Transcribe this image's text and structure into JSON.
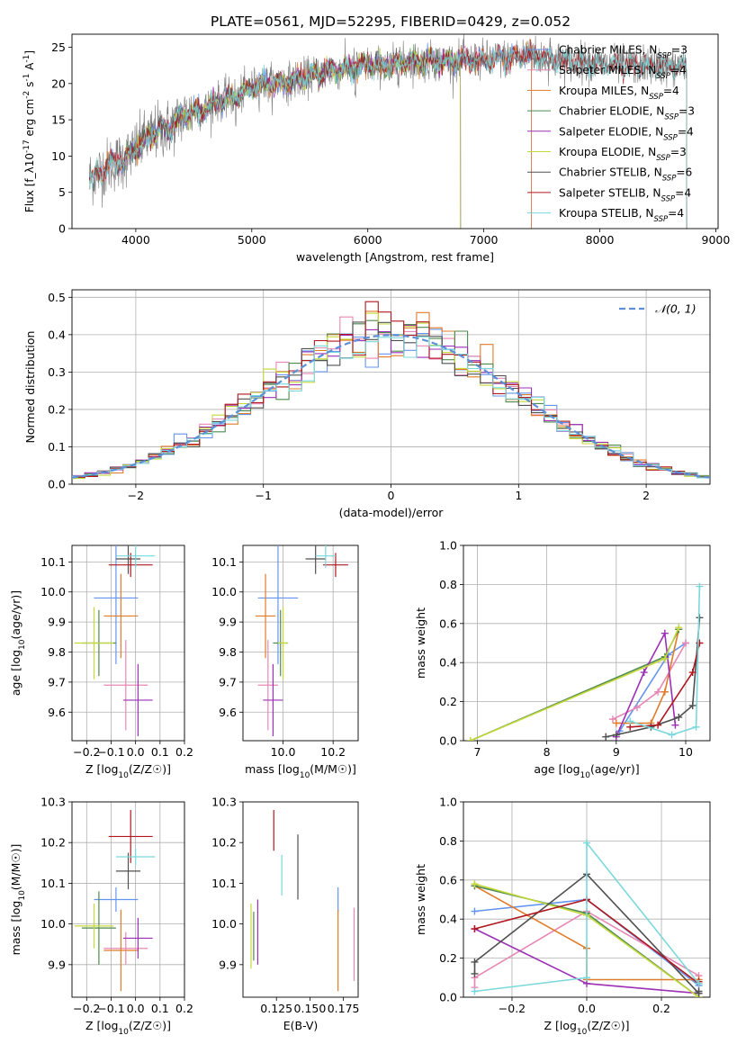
{
  "figure": {
    "title": "PLATE=0561, MJD=52295, FIBERID=0429, z=0.052"
  },
  "model_names": [
    "Chabrier MILES, N_{SSP}=3",
    "Salpeter MILES, N_{SSP}=4",
    "Kroupa MILES, N_{SSP}=4",
    "Chabrier ELODIE, N_{SSP}=3",
    "Salpeter ELODIE, N_{SSP}=4",
    "Kroupa ELODIE, N_{SSP}=3",
    "Chabrier STELIB, N_{SSP}=6",
    "Salpeter STELIB, N_{SSP}=4",
    "Kroupa STELIB, N_{SSP}=4"
  ],
  "model_colors": [
    "#6495ed",
    "#e887b5",
    "#e07b2a",
    "#4f8a4f",
    "#9b30b5",
    "#c5d83a",
    "#505050",
    "#b0171f",
    "#7ad8db"
  ],
  "chart_data": [
    {
      "id": "spectrum",
      "type": "line",
      "title": "PLATE=0561, MJD=52295, FIBERID=0429, z=0.052",
      "xlabel": "wavelength [Angstrom, rest frame]",
      "ylabel": "Flux [f_λ10^{-17} erg cm^{-2} s^{-1} A^{-1}]",
      "xlim": [
        3450,
        9020
      ],
      "ylim": [
        0,
        26.8
      ],
      "xticks": [
        4000,
        5000,
        6000,
        7000,
        8000,
        9000
      ],
      "yticks": [
        0,
        5,
        10,
        15,
        20,
        25
      ],
      "grid": false,
      "legend": "right",
      "data_x_range": [
        3600,
        8750
      ],
      "observed_envelope": {
        "x": [
          3600,
          3700,
          3800,
          3900,
          4000,
          4100,
          4200,
          4300,
          4400,
          4500,
          4600,
          4700,
          4800,
          4900,
          5000,
          5100,
          5200,
          5400,
          5600,
          5800,
          6000,
          6200,
          6400,
          6600,
          6800,
          7000,
          7200,
          7400,
          7600,
          7800,
          8000,
          8200,
          8400,
          8600,
          8750
        ],
        "y": [
          7,
          8,
          9,
          9.5,
          11,
          12.5,
          13.5,
          14,
          15.5,
          16,
          16.5,
          17.5,
          18,
          18.5,
          19.5,
          20,
          20,
          20.5,
          21.5,
          22,
          22.5,
          22.5,
          23,
          23,
          23.2,
          23.3,
          23.5,
          24,
          23.2,
          23,
          22.7,
          22.5,
          22.5,
          22.3,
          22.2
        ]
      },
      "series": [
        {
          "name": "Chabrier MILES, N_{SSP}=3",
          "x_range": [
            3600,
            7410
          ]
        },
        {
          "name": "Salpeter MILES, N_{SSP}=4",
          "x_range": [
            3600,
            7410
          ]
        },
        {
          "name": "Kroupa MILES, N_{SSP}=4",
          "x_range": [
            3600,
            7410
          ]
        },
        {
          "name": "Chabrier ELODIE, N_{SSP}=3",
          "x_range": [
            3900,
            6800
          ]
        },
        {
          "name": "Salpeter ELODIE, N_{SSP}=4",
          "x_range": [
            3900,
            6800
          ]
        },
        {
          "name": "Kroupa ELODIE, N_{SSP}=3",
          "x_range": [
            3900,
            6800
          ]
        },
        {
          "name": "Chabrier STELIB, N_{SSP}=6",
          "x_range": [
            3600,
            8750
          ]
        },
        {
          "name": "Salpeter STELIB, N_{SSP}=4",
          "x_range": [
            3600,
            8750
          ]
        },
        {
          "name": "Kroupa STELIB, N_{SSP}=4",
          "x_range": [
            3600,
            8750
          ]
        }
      ]
    },
    {
      "id": "residuals",
      "type": "area",
      "xlabel": "(data-model)/error",
      "ylabel": "Normed distribution",
      "xlim": [
        -2.5,
        2.5
      ],
      "ylim": [
        0,
        0.52
      ],
      "xticks": [
        -2,
        -1,
        0,
        1,
        2
      ],
      "yticks": [
        0.0,
        0.1,
        0.2,
        0.3,
        0.4,
        0.5
      ],
      "grid": true,
      "legend": "top-right",
      "gaussian": {
        "name": "𝒩(0, 1)",
        "mu": 0,
        "sigma": 1
      },
      "bin_width": 0.1,
      "histogram_bins": [
        -2.5,
        2.5
      ]
    },
    {
      "id": "age_vs_z",
      "type": "scatter",
      "xlabel": "Z [log10(Z/Z☉)]",
      "ylabel": "age  [log10(age/yr)]",
      "xlim": [
        -0.26,
        0.2
      ],
      "ylim": [
        9.505,
        10.155
      ],
      "xticks": [
        -0.2,
        -0.1,
        0.0,
        0.1,
        0.2
      ],
      "yticks": [
        9.6,
        9.7,
        9.8,
        9.9,
        10.0,
        10.1
      ],
      "grid": true,
      "points": [
        {
          "x": -0.08,
          "y": 9.98,
          "xerr": 0.09,
          "yerr": 0.22
        },
        {
          "x": -0.04,
          "y": 9.69,
          "xerr": 0.09,
          "yerr": 0.15
        },
        {
          "x": -0.06,
          "y": 9.92,
          "xerr": 0.07,
          "yerr": 0.14
        },
        {
          "x": -0.15,
          "y": 9.83,
          "xerr": 0.07,
          "yerr": 0.11
        },
        {
          "x": 0.01,
          "y": 9.64,
          "xerr": 0.06,
          "yerr": 0.12
        },
        {
          "x": -0.17,
          "y": 9.83,
          "xerr": 0.08,
          "yerr": 0.12
        },
        {
          "x": -0.03,
          "y": 10.11,
          "xerr": 0.05,
          "yerr": 0.05
        },
        {
          "x": -0.02,
          "y": 10.09,
          "xerr": 0.09,
          "yerr": 0.04
        },
        {
          "x": 0.0,
          "y": 10.12,
          "xerr": 0.08,
          "yerr": 0.04
        }
      ]
    },
    {
      "id": "age_vs_mass",
      "type": "scatter",
      "xlabel": "mass [log10(M/M☉)]",
      "ylabel": "",
      "xlim": [
        9.84,
        10.3
      ],
      "ylim": [
        9.505,
        10.155
      ],
      "xticks": [
        10.0,
        10.2
      ],
      "yticks": [
        9.6,
        9.7,
        9.8,
        9.9,
        10.0,
        10.1
      ],
      "grid": true,
      "points": [
        {
          "x": 9.98,
          "y": 9.98,
          "xerr": 0.08,
          "yerr": 0.22
        },
        {
          "x": 9.94,
          "y": 9.69,
          "xerr": 0.04,
          "yerr": 0.15
        },
        {
          "x": 9.93,
          "y": 9.92,
          "xerr": 0.04,
          "yerr": 0.14
        },
        {
          "x": 9.99,
          "y": 9.83,
          "xerr": 0.03,
          "yerr": 0.11
        },
        {
          "x": 9.96,
          "y": 9.64,
          "xerr": 0.04,
          "yerr": 0.12
        },
        {
          "x": 10.0,
          "y": 9.83,
          "xerr": 0.02,
          "yerr": 0.12
        },
        {
          "x": 10.13,
          "y": 10.11,
          "xerr": 0.04,
          "yerr": 0.05
        },
        {
          "x": 10.21,
          "y": 10.09,
          "xerr": 0.05,
          "yerr": 0.04
        },
        {
          "x": 10.17,
          "y": 10.12,
          "xerr": 0.04,
          "yerr": 0.04
        }
      ]
    },
    {
      "id": "mw_vs_age",
      "type": "line",
      "xlabel": "age  [log10(age/yr)]",
      "ylabel": "mass weight",
      "xlim": [
        6.8,
        10.35
      ],
      "ylim": [
        0,
        1
      ],
      "xticks": [
        7,
        8,
        9,
        10
      ],
      "yticks": [
        0.0,
        0.2,
        0.4,
        0.6,
        0.8,
        1.0
      ],
      "grid": true,
      "series": [
        {
          "name": "Chabrier MILES, N_{SSP}=3",
          "x": [
            9.05,
            9.75,
            10.0
          ],
          "y": [
            0.05,
            0.44,
            0.5
          ]
        },
        {
          "name": "Salpeter MILES, N_{SSP}=4",
          "x": [
            8.95,
            9.3,
            9.6,
            10.0
          ],
          "y": [
            0.11,
            0.17,
            0.25,
            0.5
          ]
        },
        {
          "name": "Kroupa MILES, N_{SSP}=4",
          "x": [
            9.0,
            9.5,
            9.7,
            9.9
          ],
          "y": [
            0.09,
            0.09,
            0.25,
            0.57
          ]
        },
        {
          "name": "Chabrier ELODIE, N_{SSP}=3",
          "x": [
            6.9,
            9.7,
            9.9
          ],
          "y": [
            0.0,
            0.43,
            0.57
          ]
        },
        {
          "name": "Salpeter ELODIE, N_{SSP}=4",
          "x": [
            9.0,
            9.4,
            9.7,
            9.85
          ],
          "y": [
            0.02,
            0.35,
            0.55,
            0.08
          ]
        },
        {
          "name": "Kroupa ELODIE, N_{SSP}=3",
          "x": [
            6.9,
            9.7,
            9.9
          ],
          "y": [
            0.0,
            0.42,
            0.58
          ]
        },
        {
          "name": "Chabrier STELIB, N_{SSP}=6",
          "x": [
            8.85,
            9.0,
            9.5,
            9.9,
            10.1,
            10.2
          ],
          "y": [
            0.02,
            0.03,
            0.07,
            0.12,
            0.18,
            0.63
          ]
        },
        {
          "name": "Salpeter STELIB, N_{SSP}=4",
          "x": [
            9.2,
            9.6,
            10.1,
            10.2
          ],
          "y": [
            0.07,
            0.08,
            0.35,
            0.5
          ]
        },
        {
          "name": "Kroupa STELIB, N_{SSP}=4",
          "x": [
            9.2,
            9.8,
            10.15,
            10.2
          ],
          "y": [
            0.1,
            0.03,
            0.07,
            0.79
          ]
        }
      ]
    },
    {
      "id": "mass_vs_z",
      "type": "scatter",
      "xlabel": "Z [log10(Z/Z☉)]",
      "ylabel": "mass [log10(M/M☉)]",
      "xlim": [
        -0.26,
        0.2
      ],
      "ylim": [
        9.82,
        10.3
      ],
      "xticks": [
        -0.2,
        -0.1,
        0.0,
        0.1,
        0.2
      ],
      "yticks": [
        9.9,
        10.0,
        10.1,
        10.2,
        10.3
      ],
      "grid": true,
      "points": [
        {
          "x": -0.08,
          "y": 10.06,
          "xerr": 0.09,
          "yerr": 0.03
        },
        {
          "x": -0.04,
          "y": 9.94,
          "xerr": 0.09,
          "yerr": 0.04
        },
        {
          "x": -0.06,
          "y": 9.935,
          "xerr": 0.07,
          "yerr": 0.1
        },
        {
          "x": -0.15,
          "y": 9.99,
          "xerr": 0.07,
          "yerr": 0.09
        },
        {
          "x": 0.01,
          "y": 9.965,
          "xerr": 0.06,
          "yerr": 0.05
        },
        {
          "x": -0.17,
          "y": 9.995,
          "xerr": 0.08,
          "yerr": 0.055
        },
        {
          "x": -0.03,
          "y": 10.13,
          "xerr": 0.05,
          "yerr": 0.045
        },
        {
          "x": -0.02,
          "y": 10.215,
          "xerr": 0.09,
          "yerr": 0.065
        },
        {
          "x": 0.0,
          "y": 10.165,
          "xerr": 0.08,
          "yerr": 0.02
        }
      ]
    },
    {
      "id": "mass_vs_ebv",
      "type": "scatter",
      "xlabel": "E(B-V)",
      "ylabel": "",
      "xlim": [
        0.1,
        0.186
      ],
      "ylim": [
        9.82,
        10.3
      ],
      "xticks": [
        0.125,
        0.15,
        0.175
      ],
      "xtick_labels": [
        "0.125",
        "0.150",
        "0.175"
      ],
      "yticks": [
        9.9,
        10.0,
        10.1,
        10.2,
        10.3
      ],
      "grid": false,
      "points": [
        {
          "x": 0.171,
          "y": 10.06,
          "xerr": 0,
          "yerr": 0.03
        },
        {
          "x": 0.183,
          "y": 9.95,
          "xerr": 0,
          "yerr": 0.09
        },
        {
          "x": 0.171,
          "y": 9.935,
          "xerr": 0,
          "yerr": 0.1
        },
        {
          "x": 0.108,
          "y": 9.97,
          "xerr": 0,
          "yerr": 0.06
        },
        {
          "x": 0.111,
          "y": 9.98,
          "xerr": 0,
          "yerr": 0.08
        },
        {
          "x": 0.106,
          "y": 9.97,
          "xerr": 0,
          "yerr": 0.08
        },
        {
          "x": 0.141,
          "y": 10.14,
          "xerr": 0,
          "yerr": 0.08
        },
        {
          "x": 0.123,
          "y": 10.23,
          "xerr": 0,
          "yerr": 0.05
        },
        {
          "x": 0.129,
          "y": 10.12,
          "xerr": 0,
          "yerr": 0.05
        }
      ]
    },
    {
      "id": "mw_vs_z",
      "type": "line",
      "xlabel": "Z [log10(Z/Z☉)]",
      "ylabel": "mass weight",
      "xlim": [
        -0.33,
        0.33
      ],
      "ylim": [
        0,
        1
      ],
      "xticks": [
        -0.2,
        0.0,
        0.2
      ],
      "yticks": [
        0.0,
        0.2,
        0.4,
        0.6,
        0.8,
        1.0
      ],
      "grid": true,
      "series": [
        {
          "name": "Chabrier MILES, N_{SSP}=3",
          "x": [
            -0.3,
            0.0,
            0.3
          ],
          "y": [
            0.44,
            0.5,
            0.06
          ]
        },
        {
          "name": "Salpeter MILES, N_{SSP}=4",
          "x": [
            -0.3,
            -0.3,
            0.0,
            0.3
          ],
          "y": [
            0.05,
            0.1,
            0.44,
            0.11
          ]
        },
        {
          "name": "Kroupa MILES, N_{SSP}=4",
          "x": [
            -0.3,
            0.0,
            0.0,
            0.3
          ],
          "y": [
            0.57,
            0.25,
            0.09,
            0.09
          ]
        },
        {
          "name": "Chabrier ELODIE, N_{SSP}=3",
          "x": [
            -0.3,
            0.0,
            0.3
          ],
          "y": [
            0.57,
            0.43,
            0.0
          ]
        },
        {
          "name": "Salpeter ELODIE, N_{SSP}=4",
          "x": [
            -0.3,
            0.0,
            0.3
          ],
          "y": [
            0.35,
            0.07,
            0.02
          ]
        },
        {
          "name": "Kroupa ELODIE, N_{SSP}=3",
          "x": [
            -0.3,
            0.0,
            0.3
          ],
          "y": [
            0.58,
            0.42,
            0.0
          ]
        },
        {
          "name": "Chabrier STELIB, N_{SSP}=6",
          "x": [
            -0.3,
            -0.3,
            0.0,
            0.3,
            0.3
          ],
          "y": [
            0.12,
            0.18,
            0.63,
            0.02,
            0.03
          ]
        },
        {
          "name": "Salpeter STELIB, N_{SSP}=4",
          "x": [
            -0.3,
            0.0,
            0.3,
            0.3
          ],
          "y": [
            0.35,
            0.5,
            0.07,
            0.08
          ]
        },
        {
          "name": "Kroupa STELIB, N_{SSP}=4",
          "x": [
            -0.3,
            0.0,
            0.0,
            0.3
          ],
          "y": [
            0.03,
            0.1,
            0.79,
            0.07
          ]
        }
      ]
    }
  ]
}
